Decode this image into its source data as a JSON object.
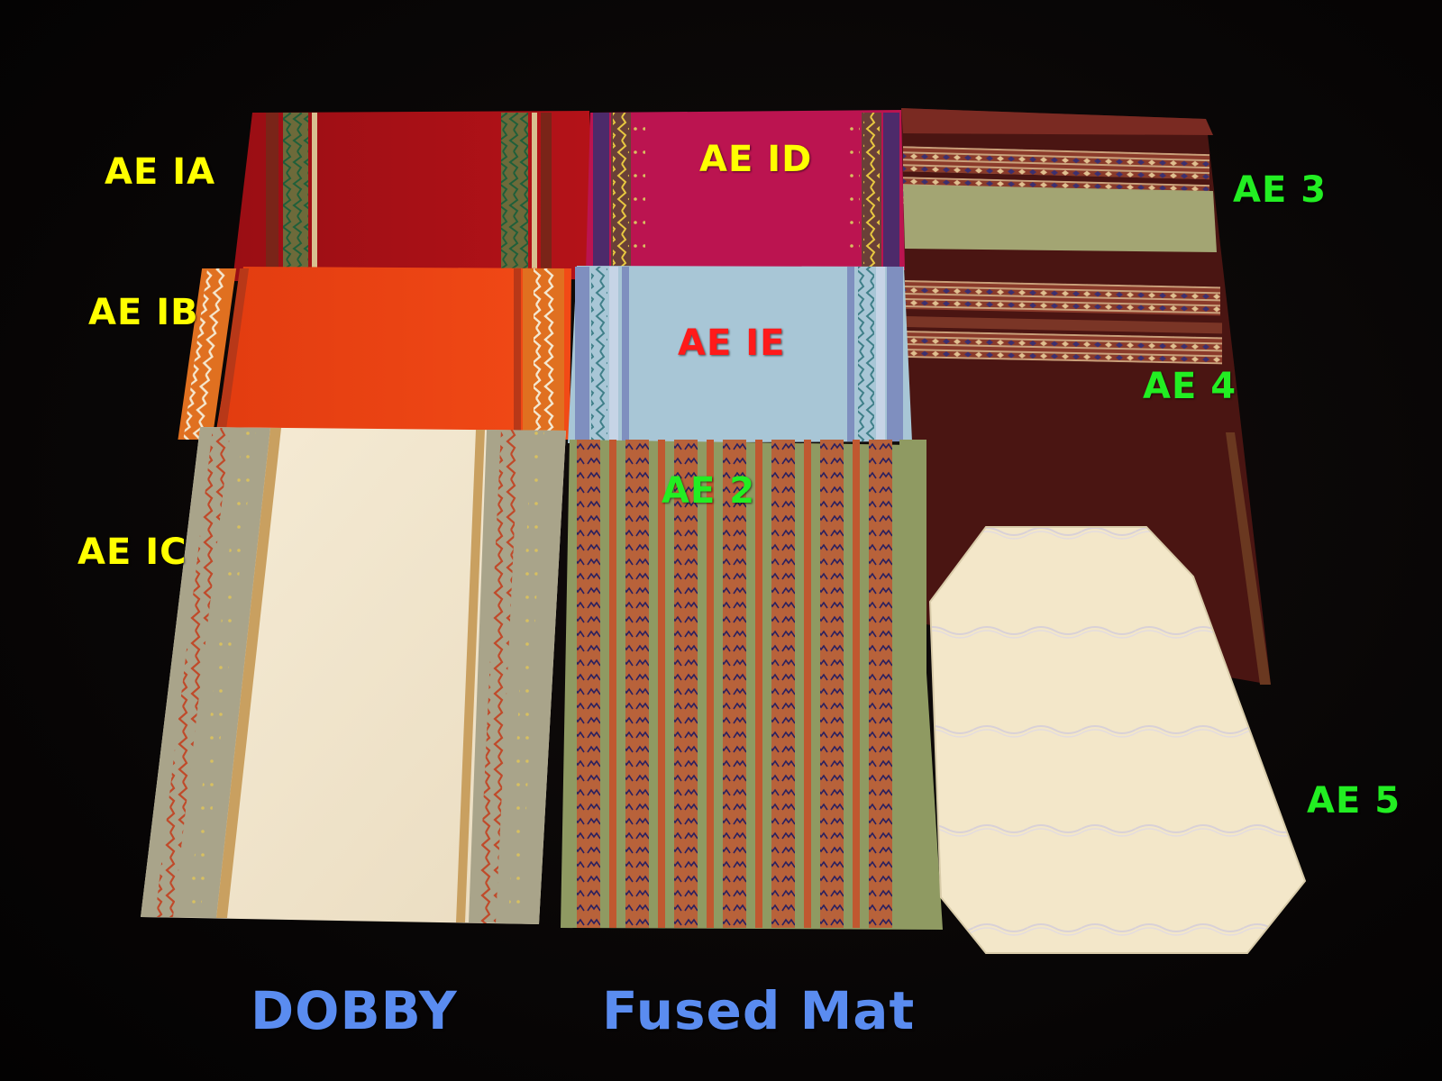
{
  "labels": {
    "ae_1a": "AE IA",
    "ae_1b": "AE IB",
    "ae_1c": "AE IC",
    "ae_1d": "AE ID",
    "ae_1e": "AE IE",
    "ae_2": "AE 2",
    "ae_3": "AE 3",
    "ae_4": "AE 4",
    "ae_5": "AE 5"
  },
  "captions": {
    "dobby": "DOBBY",
    "fused_mat": "Fused Mat"
  },
  "colors": {
    "label_yellow": "#ffff00",
    "label_green": "#22ee22",
    "label_red": "#ff1a1a",
    "caption_blue": "#5a8cf0",
    "background": "#050404"
  }
}
